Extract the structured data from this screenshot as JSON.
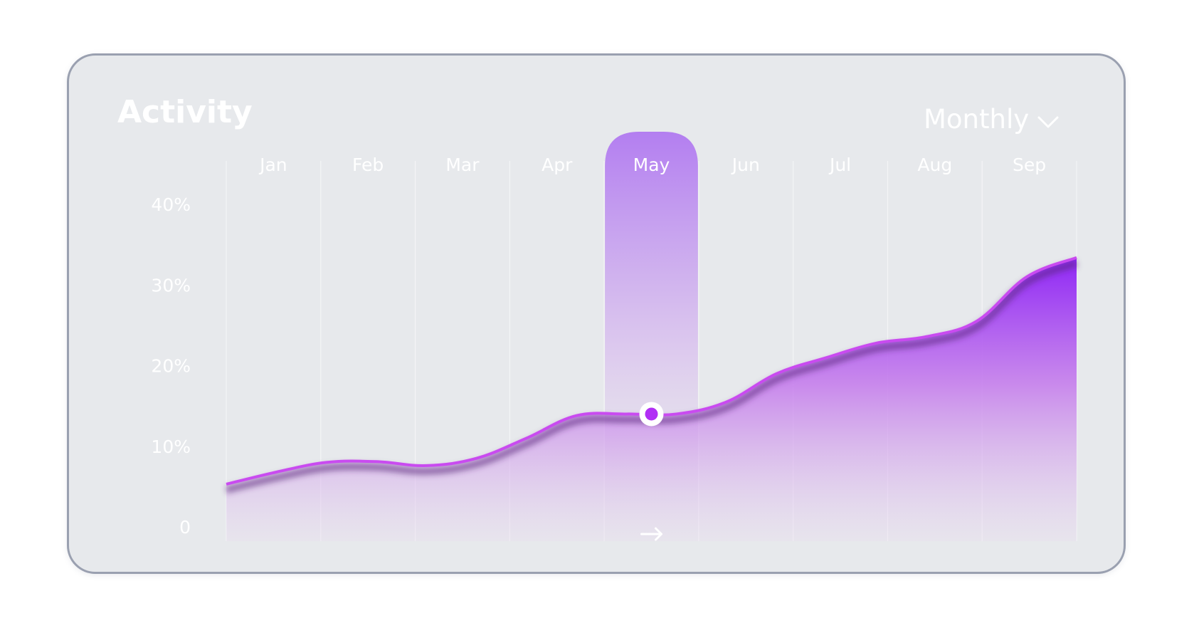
{
  "card": {
    "title": "Activity",
    "period_selector": {
      "selected": "Monthly",
      "icon": "chevron-down-icon"
    }
  },
  "colors": {
    "card_bg": "#e7e9ec",
    "accent": "#8f2cf5",
    "line": "#c94bf0",
    "text": "#ffffff"
  },
  "chart_data": {
    "type": "area",
    "title": "Activity",
    "categories": [
      "Jan",
      "Feb",
      "Mar",
      "Apr",
      "May",
      "Jun",
      "Jul",
      "Aug",
      "Sep"
    ],
    "y_tick_labels": [
      "0",
      "10%",
      "20%",
      "30%",
      "40%"
    ],
    "ylim": [
      0,
      40
    ],
    "x": [
      "Jan",
      "Jan-Feb",
      "Feb",
      "Feb-Mar",
      "Mar",
      "Mar-Apr",
      "Apr",
      "Apr-May",
      "May",
      "May-Jun",
      "Jun",
      "Jun-Jul",
      "Jul",
      "Jul-Aug",
      "Aug",
      "Aug-Sep",
      "Sep",
      "Sep-end"
    ],
    "series": [
      {
        "values": [
          5.3,
          6.8,
          8.0,
          8.1,
          7.6,
          8.5,
          11.0,
          13.8,
          14.0,
          14.0,
          15.5,
          19.0,
          21.0,
          22.8,
          23.6,
          25.5,
          31.0,
          33.4
        ]
      }
    ],
    "highlight": {
      "category": "May",
      "value": 14.0
    },
    "grid": true,
    "legend": "none"
  }
}
